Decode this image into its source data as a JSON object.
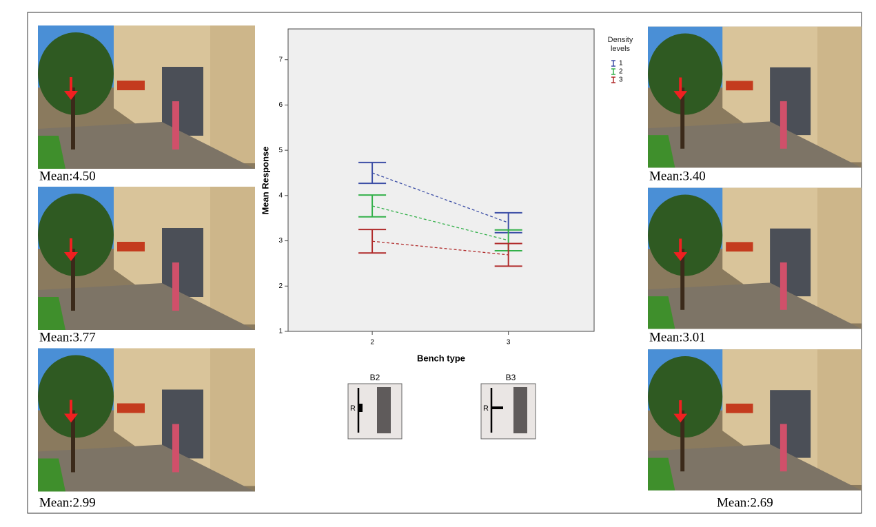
{
  "chart_data": {
    "type": "errorbar",
    "x_label": "Bench type",
    "y_label": "Mean Response",
    "categories": [
      "2",
      "3"
    ],
    "series": [
      {
        "name": "1",
        "color": "#3c4ea6",
        "values": [
          4.5,
          3.4
        ],
        "errors": [
          0.23,
          0.22
        ]
      },
      {
        "name": "2",
        "color": "#33b04a",
        "values": [
          3.77,
          3.01
        ],
        "errors": [
          0.24,
          0.23
        ]
      },
      {
        "name": "3",
        "color": "#b02a2a",
        "values": [
          2.99,
          2.69
        ],
        "errors": [
          0.26,
          0.25
        ]
      }
    ],
    "legend_title": "Density levels",
    "ylim": [
      1,
      7.68
    ],
    "yticks": [
      1,
      2,
      3,
      4,
      5,
      6,
      7
    ]
  },
  "panels": [
    {
      "caption": "Mean:4.50"
    },
    {
      "caption": "Mean:3.77"
    },
    {
      "caption": "Mean:2.99"
    },
    {
      "caption": "Mean:3.40"
    },
    {
      "caption": "Mean:3.01"
    },
    {
      "caption": "Mean:2.69"
    }
  ],
  "bench_icons": [
    {
      "label": "B2",
      "side": "R"
    },
    {
      "label": "B3",
      "side": "R"
    }
  ]
}
